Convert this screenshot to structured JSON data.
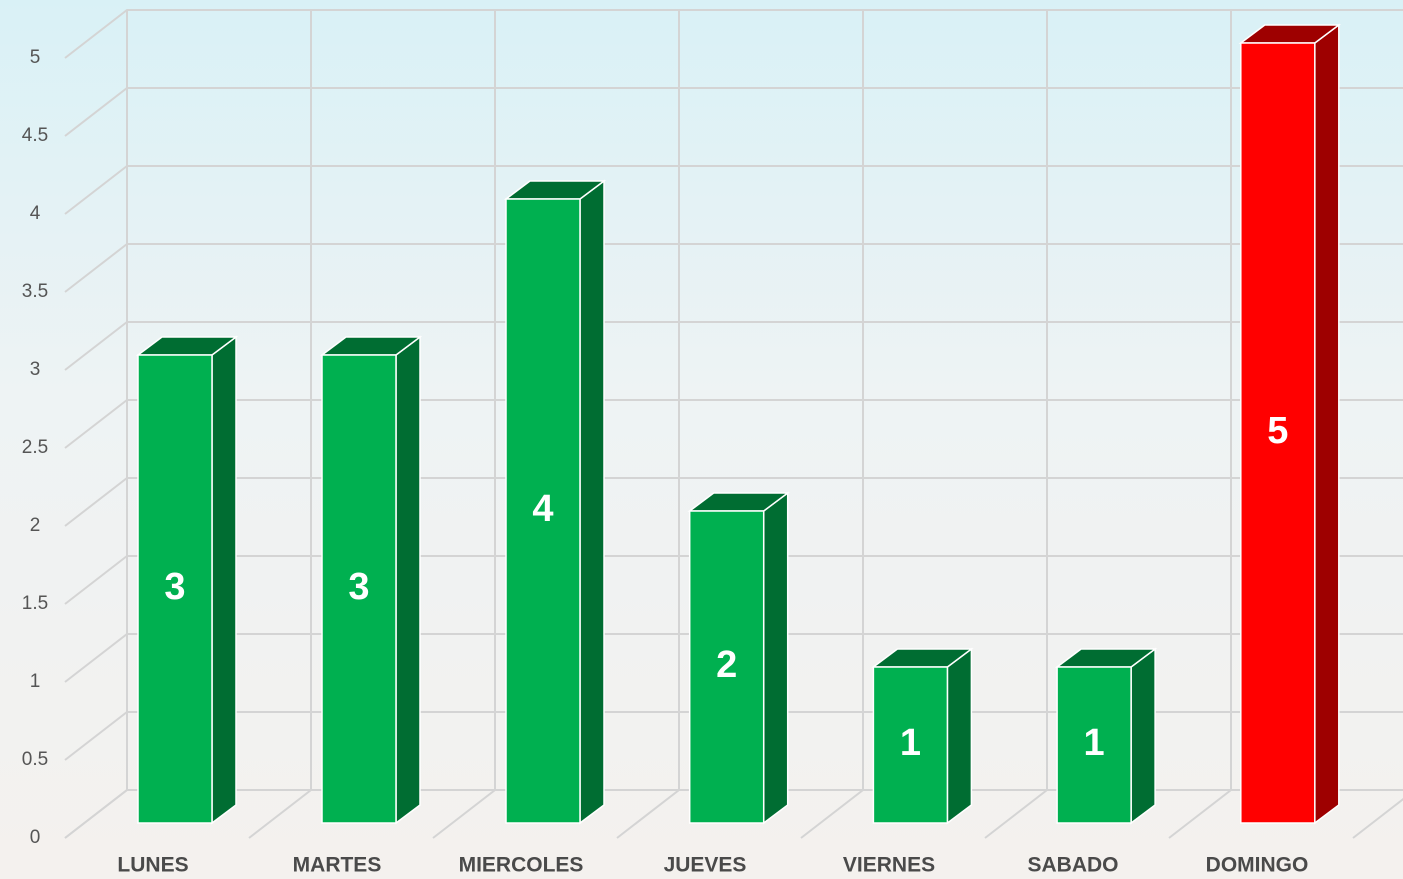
{
  "chart_data": {
    "type": "bar3d",
    "categories": [
      "LUNES",
      "MARTES",
      "MIERCOLES",
      "JUEVES",
      "VIERNES",
      "SABADO",
      "DOMINGO"
    ],
    "values": [
      3,
      3,
      4,
      2,
      1,
      1,
      5
    ],
    "colors": [
      "#00b050",
      "#00b050",
      "#00b050",
      "#00b050",
      "#00b050",
      "#00b050",
      "#ff0000"
    ],
    "ylim": [
      0,
      5
    ],
    "yticks": [
      0,
      0.5,
      1,
      1.5,
      2,
      2.5,
      3,
      3.5,
      4,
      4.5,
      5
    ],
    "grid": true
  }
}
